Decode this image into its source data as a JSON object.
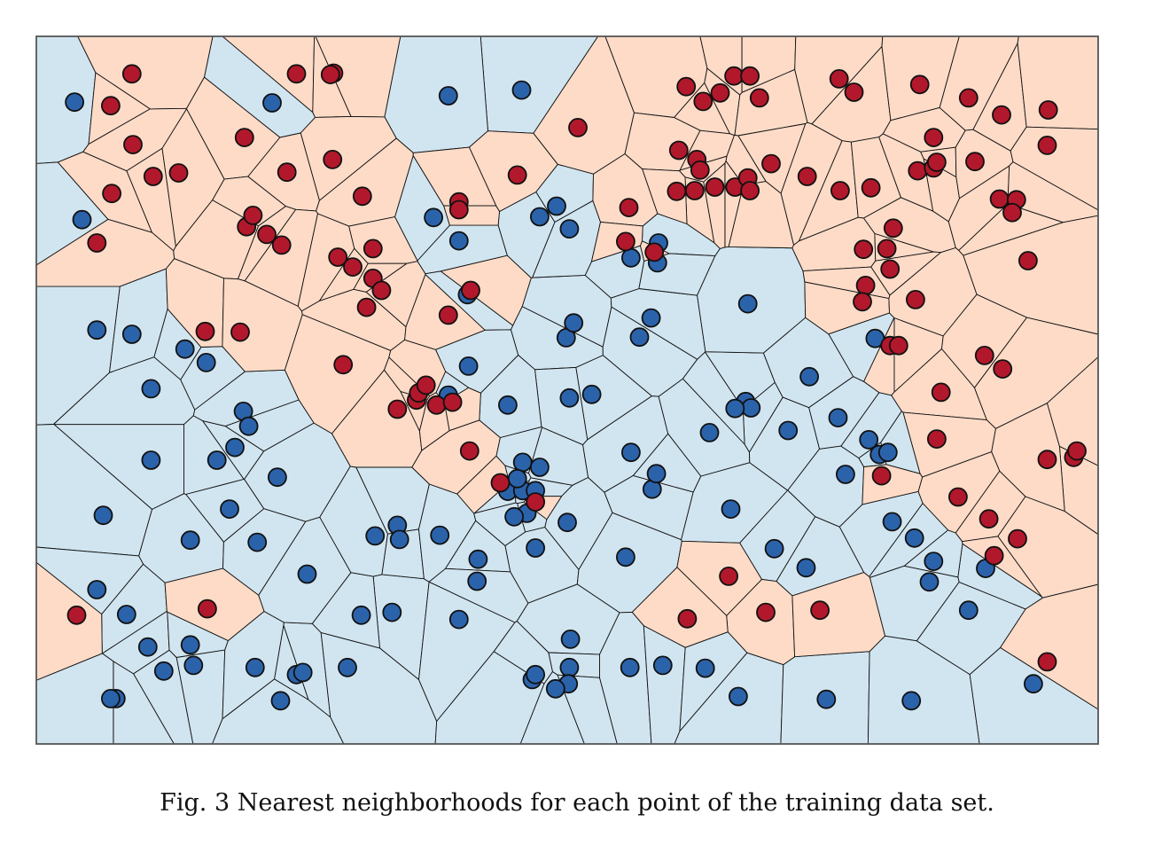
{
  "caption": "Fig. 3 Nearest neighborhoods for each point of the training data set.",
  "colors": {
    "class_a_fill": "#2b63ab",
    "class_a_region": "#d1e5f0",
    "class_b_fill": "#b2182b",
    "class_b_region": "#fddbc7",
    "cell_edge": "#111111",
    "frame": "#555555"
  },
  "chart_data": {
    "type": "scatter",
    "title": "",
    "xlabel": "",
    "ylabel": "",
    "xlim": [
      0,
      1
    ],
    "ylim": [
      0,
      1
    ],
    "grid": false,
    "axes_ticks": false,
    "overlay": "voronoi-nearest-neighbor-cells",
    "series": [
      {
        "points": [
          [
            0.036,
            0.907
          ],
          [
            0.043,
            0.741
          ],
          [
            0.057,
            0.585
          ],
          [
            0.09,
            0.579
          ],
          [
            0.108,
            0.502
          ],
          [
            0.16,
            0.539
          ],
          [
            0.187,
            0.419
          ],
          [
            0.14,
            0.558
          ],
          [
            0.195,
            0.47
          ],
          [
            0.2,
            0.449
          ],
          [
            0.145,
            0.288
          ],
          [
            0.17,
            0.401
          ],
          [
            0.227,
            0.377
          ],
          [
            0.108,
            0.401
          ],
          [
            0.063,
            0.323
          ],
          [
            0.057,
            0.218
          ],
          [
            0.085,
            0.183
          ],
          [
            0.105,
            0.137
          ],
          [
            0.12,
            0.103
          ],
          [
            0.145,
            0.14
          ],
          [
            0.075,
            0.064
          ],
          [
            0.07,
            0.064
          ],
          [
            0.148,
            0.111
          ],
          [
            0.206,
            0.108
          ],
          [
            0.245,
            0.098
          ],
          [
            0.23,
            0.061
          ],
          [
            0.251,
            0.101
          ],
          [
            0.293,
            0.108
          ],
          [
            0.335,
            0.186
          ],
          [
            0.306,
            0.182
          ],
          [
            0.255,
            0.24
          ],
          [
            0.208,
            0.285
          ],
          [
            0.182,
            0.332
          ],
          [
            0.319,
            0.294
          ],
          [
            0.34,
            0.309
          ],
          [
            0.342,
            0.289
          ],
          [
            0.38,
            0.295
          ],
          [
            0.416,
            0.261
          ],
          [
            0.415,
            0.23
          ],
          [
            0.398,
            0.176
          ],
          [
            0.458,
            0.398
          ],
          [
            0.444,
            0.357
          ],
          [
            0.458,
            0.358
          ],
          [
            0.462,
            0.326
          ],
          [
            0.47,
            0.358
          ],
          [
            0.474,
            0.391
          ],
          [
            0.453,
            0.375
          ],
          [
            0.45,
            0.321
          ],
          [
            0.47,
            0.277
          ],
          [
            0.5,
            0.313
          ],
          [
            0.56,
            0.412
          ],
          [
            0.58,
            0.36
          ],
          [
            0.555,
            0.264
          ],
          [
            0.503,
            0.148
          ],
          [
            0.502,
            0.108
          ],
          [
            0.501,
            0.085
          ],
          [
            0.489,
            0.078
          ],
          [
            0.467,
            0.091
          ],
          [
            0.47,
            0.098
          ],
          [
            0.559,
            0.108
          ],
          [
            0.59,
            0.111
          ],
          [
            0.63,
            0.107
          ],
          [
            0.661,
            0.067
          ],
          [
            0.744,
            0.063
          ],
          [
            0.824,
            0.061
          ],
          [
            0.939,
            0.085
          ],
          [
            0.878,
            0.189
          ],
          [
            0.894,
            0.248
          ],
          [
            0.845,
            0.258
          ],
          [
            0.827,
            0.291
          ],
          [
            0.841,
            0.229
          ],
          [
            0.725,
            0.249
          ],
          [
            0.695,
            0.276
          ],
          [
            0.654,
            0.332
          ],
          [
            0.634,
            0.44
          ],
          [
            0.584,
            0.382
          ],
          [
            0.523,
            0.494
          ],
          [
            0.499,
            0.574
          ],
          [
            0.502,
            0.489
          ],
          [
            0.506,
            0.595
          ],
          [
            0.568,
            0.575
          ],
          [
            0.579,
            0.602
          ],
          [
            0.56,
            0.687
          ],
          [
            0.586,
            0.708
          ],
          [
            0.585,
            0.68
          ],
          [
            0.668,
            0.484
          ],
          [
            0.673,
            0.475
          ],
          [
            0.658,
            0.474
          ],
          [
            0.728,
            0.519
          ],
          [
            0.755,
            0.461
          ],
          [
            0.708,
            0.443
          ],
          [
            0.762,
            0.381
          ],
          [
            0.806,
            0.314
          ],
          [
            0.794,
            0.409
          ],
          [
            0.802,
            0.412
          ],
          [
            0.784,
            0.43
          ],
          [
            0.79,
            0.573
          ],
          [
            0.67,
            0.622
          ],
          [
            0.502,
            0.728
          ],
          [
            0.49,
            0.76
          ],
          [
            0.474,
            0.745
          ],
          [
            0.398,
            0.711
          ],
          [
            0.374,
            0.744
          ],
          [
            0.457,
            0.924
          ],
          [
            0.388,
            0.916
          ],
          [
            0.222,
            0.906
          ],
          [
            0.406,
            0.635
          ],
          [
            0.407,
            0.534
          ],
          [
            0.444,
            0.479
          ],
          [
            0.388,
            0.493
          ]
        ],
        "class": "blue"
      },
      {
        "points": [
          [
            0.09,
            0.947
          ],
          [
            0.07,
            0.902
          ],
          [
            0.091,
            0.847
          ],
          [
            0.11,
            0.802
          ],
          [
            0.134,
            0.807
          ],
          [
            0.071,
            0.778
          ],
          [
            0.057,
            0.708
          ],
          [
            0.245,
            0.947
          ],
          [
            0.28,
            0.948
          ],
          [
            0.277,
            0.946
          ],
          [
            0.196,
            0.857
          ],
          [
            0.279,
            0.826
          ],
          [
            0.236,
            0.808
          ],
          [
            0.307,
            0.774
          ],
          [
            0.198,
            0.731
          ],
          [
            0.204,
            0.747
          ],
          [
            0.217,
            0.72
          ],
          [
            0.231,
            0.705
          ],
          [
            0.284,
            0.688
          ],
          [
            0.317,
            0.7
          ],
          [
            0.317,
            0.658
          ],
          [
            0.298,
            0.674
          ],
          [
            0.311,
            0.617
          ],
          [
            0.325,
            0.641
          ],
          [
            0.159,
            0.583
          ],
          [
            0.192,
            0.582
          ],
          [
            0.289,
            0.536
          ],
          [
            0.34,
            0.473
          ],
          [
            0.358,
            0.486
          ],
          [
            0.377,
            0.479
          ],
          [
            0.36,
            0.496
          ],
          [
            0.392,
            0.483
          ],
          [
            0.408,
            0.414
          ],
          [
            0.367,
            0.507
          ],
          [
            0.388,
            0.606
          ],
          [
            0.409,
            0.641
          ],
          [
            0.453,
            0.804
          ],
          [
            0.398,
            0.766
          ],
          [
            0.398,
            0.755
          ],
          [
            0.51,
            0.871
          ],
          [
            0.558,
            0.758
          ],
          [
            0.555,
            0.71
          ],
          [
            0.582,
            0.695
          ],
          [
            0.612,
            0.929
          ],
          [
            0.628,
            0.908
          ],
          [
            0.644,
            0.92
          ],
          [
            0.657,
            0.944
          ],
          [
            0.672,
            0.944
          ],
          [
            0.681,
            0.913
          ],
          [
            0.77,
            0.921
          ],
          [
            0.756,
            0.94
          ],
          [
            0.605,
            0.839
          ],
          [
            0.622,
            0.826
          ],
          [
            0.625,
            0.811
          ],
          [
            0.62,
            0.782
          ],
          [
            0.658,
            0.787
          ],
          [
            0.692,
            0.82
          ],
          [
            0.726,
            0.802
          ],
          [
            0.67,
            0.8
          ],
          [
            0.603,
            0.781
          ],
          [
            0.639,
            0.787
          ],
          [
            0.672,
            0.782
          ],
          [
            0.757,
            0.782
          ],
          [
            0.786,
            0.786
          ],
          [
            0.83,
            0.81
          ],
          [
            0.845,
            0.814
          ],
          [
            0.848,
            0.822
          ],
          [
            0.832,
            0.932
          ],
          [
            0.845,
            0.857
          ],
          [
            0.878,
            0.913
          ],
          [
            0.909,
            0.889
          ],
          [
            0.953,
            0.896
          ],
          [
            0.952,
            0.846
          ],
          [
            0.884,
            0.823
          ],
          [
            0.907,
            0.77
          ],
          [
            0.807,
            0.729
          ],
          [
            0.779,
            0.699
          ],
          [
            0.801,
            0.7
          ],
          [
            0.804,
            0.671
          ],
          [
            0.781,
            0.648
          ],
          [
            0.778,
            0.625
          ],
          [
            0.923,
            0.769
          ],
          [
            0.919,
            0.751
          ],
          [
            0.934,
            0.683
          ],
          [
            0.804,
            0.563
          ],
          [
            0.812,
            0.563
          ],
          [
            0.828,
            0.628
          ],
          [
            0.893,
            0.549
          ],
          [
            0.852,
            0.497
          ],
          [
            0.848,
            0.431
          ],
          [
            0.91,
            0.53
          ],
          [
            0.977,
            0.405
          ],
          [
            0.952,
            0.402
          ],
          [
            0.868,
            0.349
          ],
          [
            0.897,
            0.318
          ],
          [
            0.924,
            0.29
          ],
          [
            0.902,
            0.266
          ],
          [
            0.687,
            0.186
          ],
          [
            0.652,
            0.237
          ],
          [
            0.613,
            0.177
          ],
          [
            0.738,
            0.189
          ],
          [
            0.952,
            0.116
          ],
          [
            0.98,
            0.414
          ],
          [
            0.437,
            0.369
          ],
          [
            0.47,
            0.342
          ],
          [
            0.161,
            0.191
          ],
          [
            0.038,
            0.182
          ],
          [
            0.796,
            0.379
          ]
        ],
        "class": "red"
      }
    ]
  }
}
